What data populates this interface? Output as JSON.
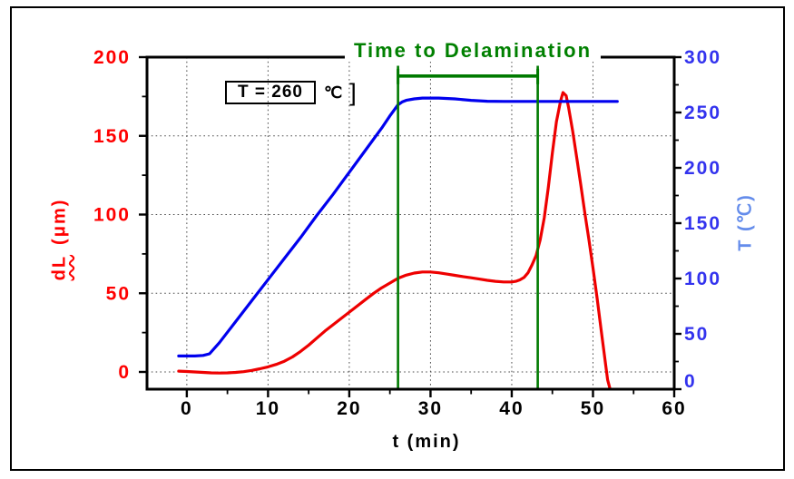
{
  "chart_data": {
    "type": "line",
    "title": "Time to Delamination",
    "xlabel": "t (min)",
    "ylabel_left": "dL (μm)",
    "ylabel_right": "T (℃)",
    "x_range": [
      -4.9,
      60
    ],
    "x_ticks": [
      0,
      10,
      20,
      30,
      40,
      50,
      60
    ],
    "x_minor_ticks": [
      5,
      15,
      25,
      35,
      45,
      55
    ],
    "y_left_range": [
      -10.95,
      200
    ],
    "y_left_ticks": [
      0,
      50,
      100,
      150,
      200
    ],
    "y_left_minor_ticks": [
      25,
      75,
      125,
      175
    ],
    "y_right_range": [
      0,
      300
    ],
    "y_right_ticks": [
      0,
      50,
      100,
      150,
      200,
      250,
      300
    ],
    "y_right_minor_ticks": [
      25,
      75,
      125,
      175,
      225,
      275
    ],
    "grid": {
      "vertical_at": [
        0,
        10,
        20,
        30,
        40,
        50
      ],
      "horizontal_at_left_values": [
        0,
        50,
        100,
        150
      ]
    },
    "legend": "none",
    "series": [
      {
        "name": "dL",
        "axis": "left",
        "color": "#ee0000",
        "points": [
          [
            -1,
            0.5
          ],
          [
            0,
            0.3
          ],
          [
            1,
            0
          ],
          [
            2,
            -0.3
          ],
          [
            3,
            -0.6
          ],
          [
            4,
            -0.7
          ],
          [
            5,
            -0.6
          ],
          [
            6,
            -0.3
          ],
          [
            7,
            0.2
          ],
          [
            8,
            1
          ],
          [
            9,
            2
          ],
          [
            10,
            3.2
          ],
          [
            11,
            4.8
          ],
          [
            12,
            6.8
          ],
          [
            13,
            9.5
          ],
          [
            14,
            13
          ],
          [
            15,
            17
          ],
          [
            16,
            21.5
          ],
          [
            17,
            26
          ],
          [
            18,
            30
          ],
          [
            19,
            34
          ],
          [
            20,
            38
          ],
          [
            21,
            42
          ],
          [
            22,
            46
          ],
          [
            23,
            50
          ],
          [
            24,
            53.5
          ],
          [
            25,
            56.5
          ],
          [
            26,
            59.5
          ],
          [
            27,
            61.5
          ],
          [
            28,
            62.8
          ],
          [
            29,
            63.5
          ],
          [
            30,
            63.5
          ],
          [
            31,
            63
          ],
          [
            32,
            62.2
          ],
          [
            33,
            61.4
          ],
          [
            34,
            60.6
          ],
          [
            35,
            59.8
          ],
          [
            36,
            59
          ],
          [
            37,
            58.2
          ],
          [
            38,
            57.6
          ],
          [
            39,
            57.2
          ],
          [
            40,
            57.2
          ],
          [
            40.5,
            57.6
          ],
          [
            41,
            58.5
          ],
          [
            41.5,
            60
          ],
          [
            42,
            63
          ],
          [
            42.5,
            68
          ],
          [
            43,
            74
          ],
          [
            43.5,
            84
          ],
          [
            44,
            98
          ],
          [
            44.5,
            117
          ],
          [
            45,
            139
          ],
          [
            45.5,
            159
          ],
          [
            46,
            172
          ],
          [
            46.3,
            177.5
          ],
          [
            46.7,
            175.5
          ],
          [
            47,
            168
          ],
          [
            47.5,
            153
          ],
          [
            48,
            136
          ],
          [
            48.5,
            119
          ],
          [
            49,
            101
          ],
          [
            49.5,
            84
          ],
          [
            50,
            66
          ],
          [
            50.5,
            47
          ],
          [
            51,
            27
          ],
          [
            51.5,
            7
          ],
          [
            51.8,
            -5
          ],
          [
            52.1,
            -10.9
          ]
        ]
      },
      {
        "name": "T",
        "axis": "right",
        "color": "#0000ee",
        "points": [
          [
            -1,
            30
          ],
          [
            0,
            30
          ],
          [
            1,
            30
          ],
          [
            2,
            30.5
          ],
          [
            2.8,
            32
          ],
          [
            4,
            42
          ],
          [
            6,
            61
          ],
          [
            8,
            80
          ],
          [
            10,
            99
          ],
          [
            12,
            118
          ],
          [
            14,
            137
          ],
          [
            16,
            157
          ],
          [
            18,
            176
          ],
          [
            20,
            196
          ],
          [
            22,
            216
          ],
          [
            24,
            236
          ],
          [
            25,
            247
          ],
          [
            26,
            257
          ],
          [
            26.5,
            259.5
          ],
          [
            27,
            261
          ],
          [
            28,
            262.3
          ],
          [
            29,
            263
          ],
          [
            31,
            263
          ],
          [
            33,
            262.3
          ],
          [
            35,
            261
          ],
          [
            37,
            260.2
          ],
          [
            39,
            260
          ],
          [
            43,
            260
          ],
          [
            47,
            260
          ],
          [
            50,
            260
          ],
          [
            53,
            260
          ]
        ]
      }
    ],
    "annotations": {
      "set_temperature": {
        "boxed_text": "T = 260",
        "unit": "℃",
        "bracket": "]"
      },
      "delamination_window": {
        "start_min": 26,
        "end_min": 43.2,
        "line_top_dl": 194.5,
        "bracket_dl": 188,
        "color": "#007a00"
      }
    }
  },
  "labels": {
    "left_axis_prefix": "dL",
    "left_axis_units": "(μm)"
  },
  "colors": {
    "left_tick_labels": "#ff0000",
    "right_tick_labels": "#3333ee",
    "bottom_tick_labels": "#000000",
    "frame": "#000000",
    "grid": "#4d4d4d",
    "title_green": "#008000",
    "right_axis_title": "#648ceb"
  }
}
